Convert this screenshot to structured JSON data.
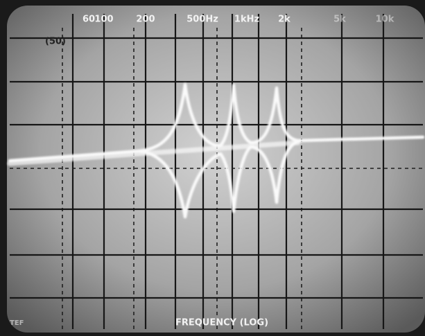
{
  "screen": {
    "frequency_labels": [
      "60",
      "100",
      "200",
      "500Hz",
      "1kHz",
      "2k",
      "5k",
      "10k"
    ],
    "marker": "(50)",
    "axis_title": "FREQUENCY (LOG)",
    "corner_text": "TEF"
  }
}
